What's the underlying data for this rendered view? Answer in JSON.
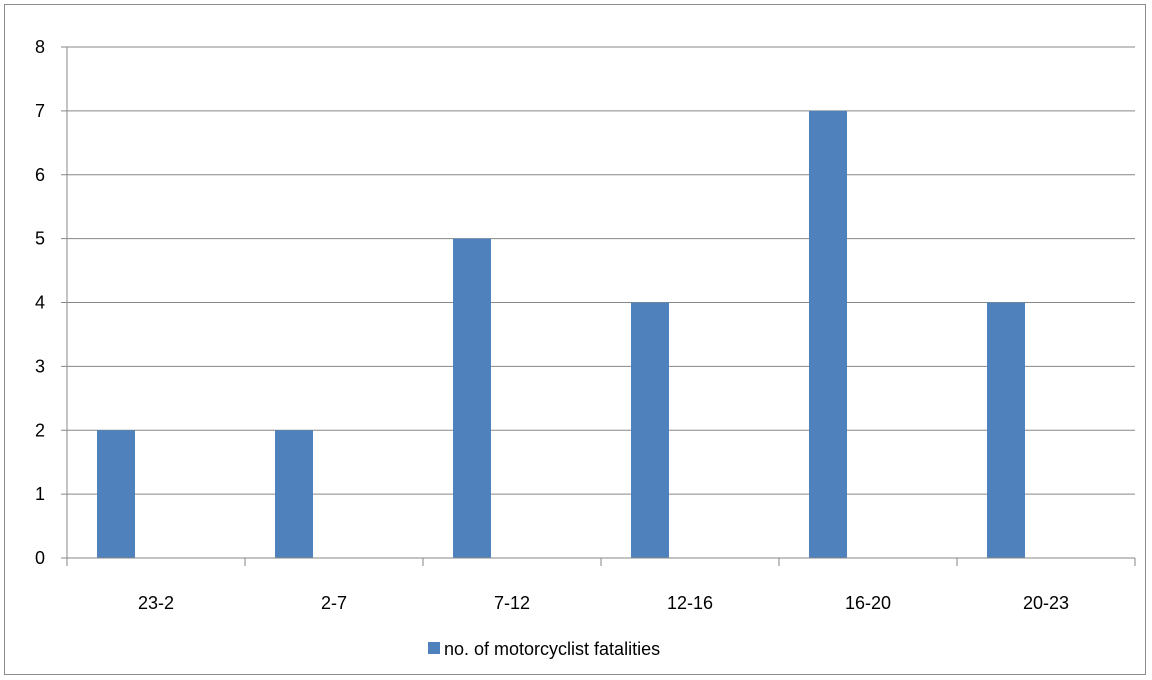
{
  "chart_data": {
    "type": "bar",
    "categories": [
      "23-2",
      "2-7",
      "7-12",
      "12-16",
      "16-20",
      "20-23"
    ],
    "series": [
      {
        "name": "no. of motorcyclist fatalities",
        "values": [
          2,
          2,
          5,
          4,
          7,
          4
        ],
        "color": "#4f81bd"
      }
    ],
    "title": "",
    "xlabel": "",
    "ylabel": "",
    "ylim": [
      0,
      8
    ],
    "yticks": [
      "0",
      "1",
      "2",
      "3",
      "4",
      "5",
      "6",
      "7",
      "8"
    ],
    "grid": true,
    "legend": "bottom"
  }
}
